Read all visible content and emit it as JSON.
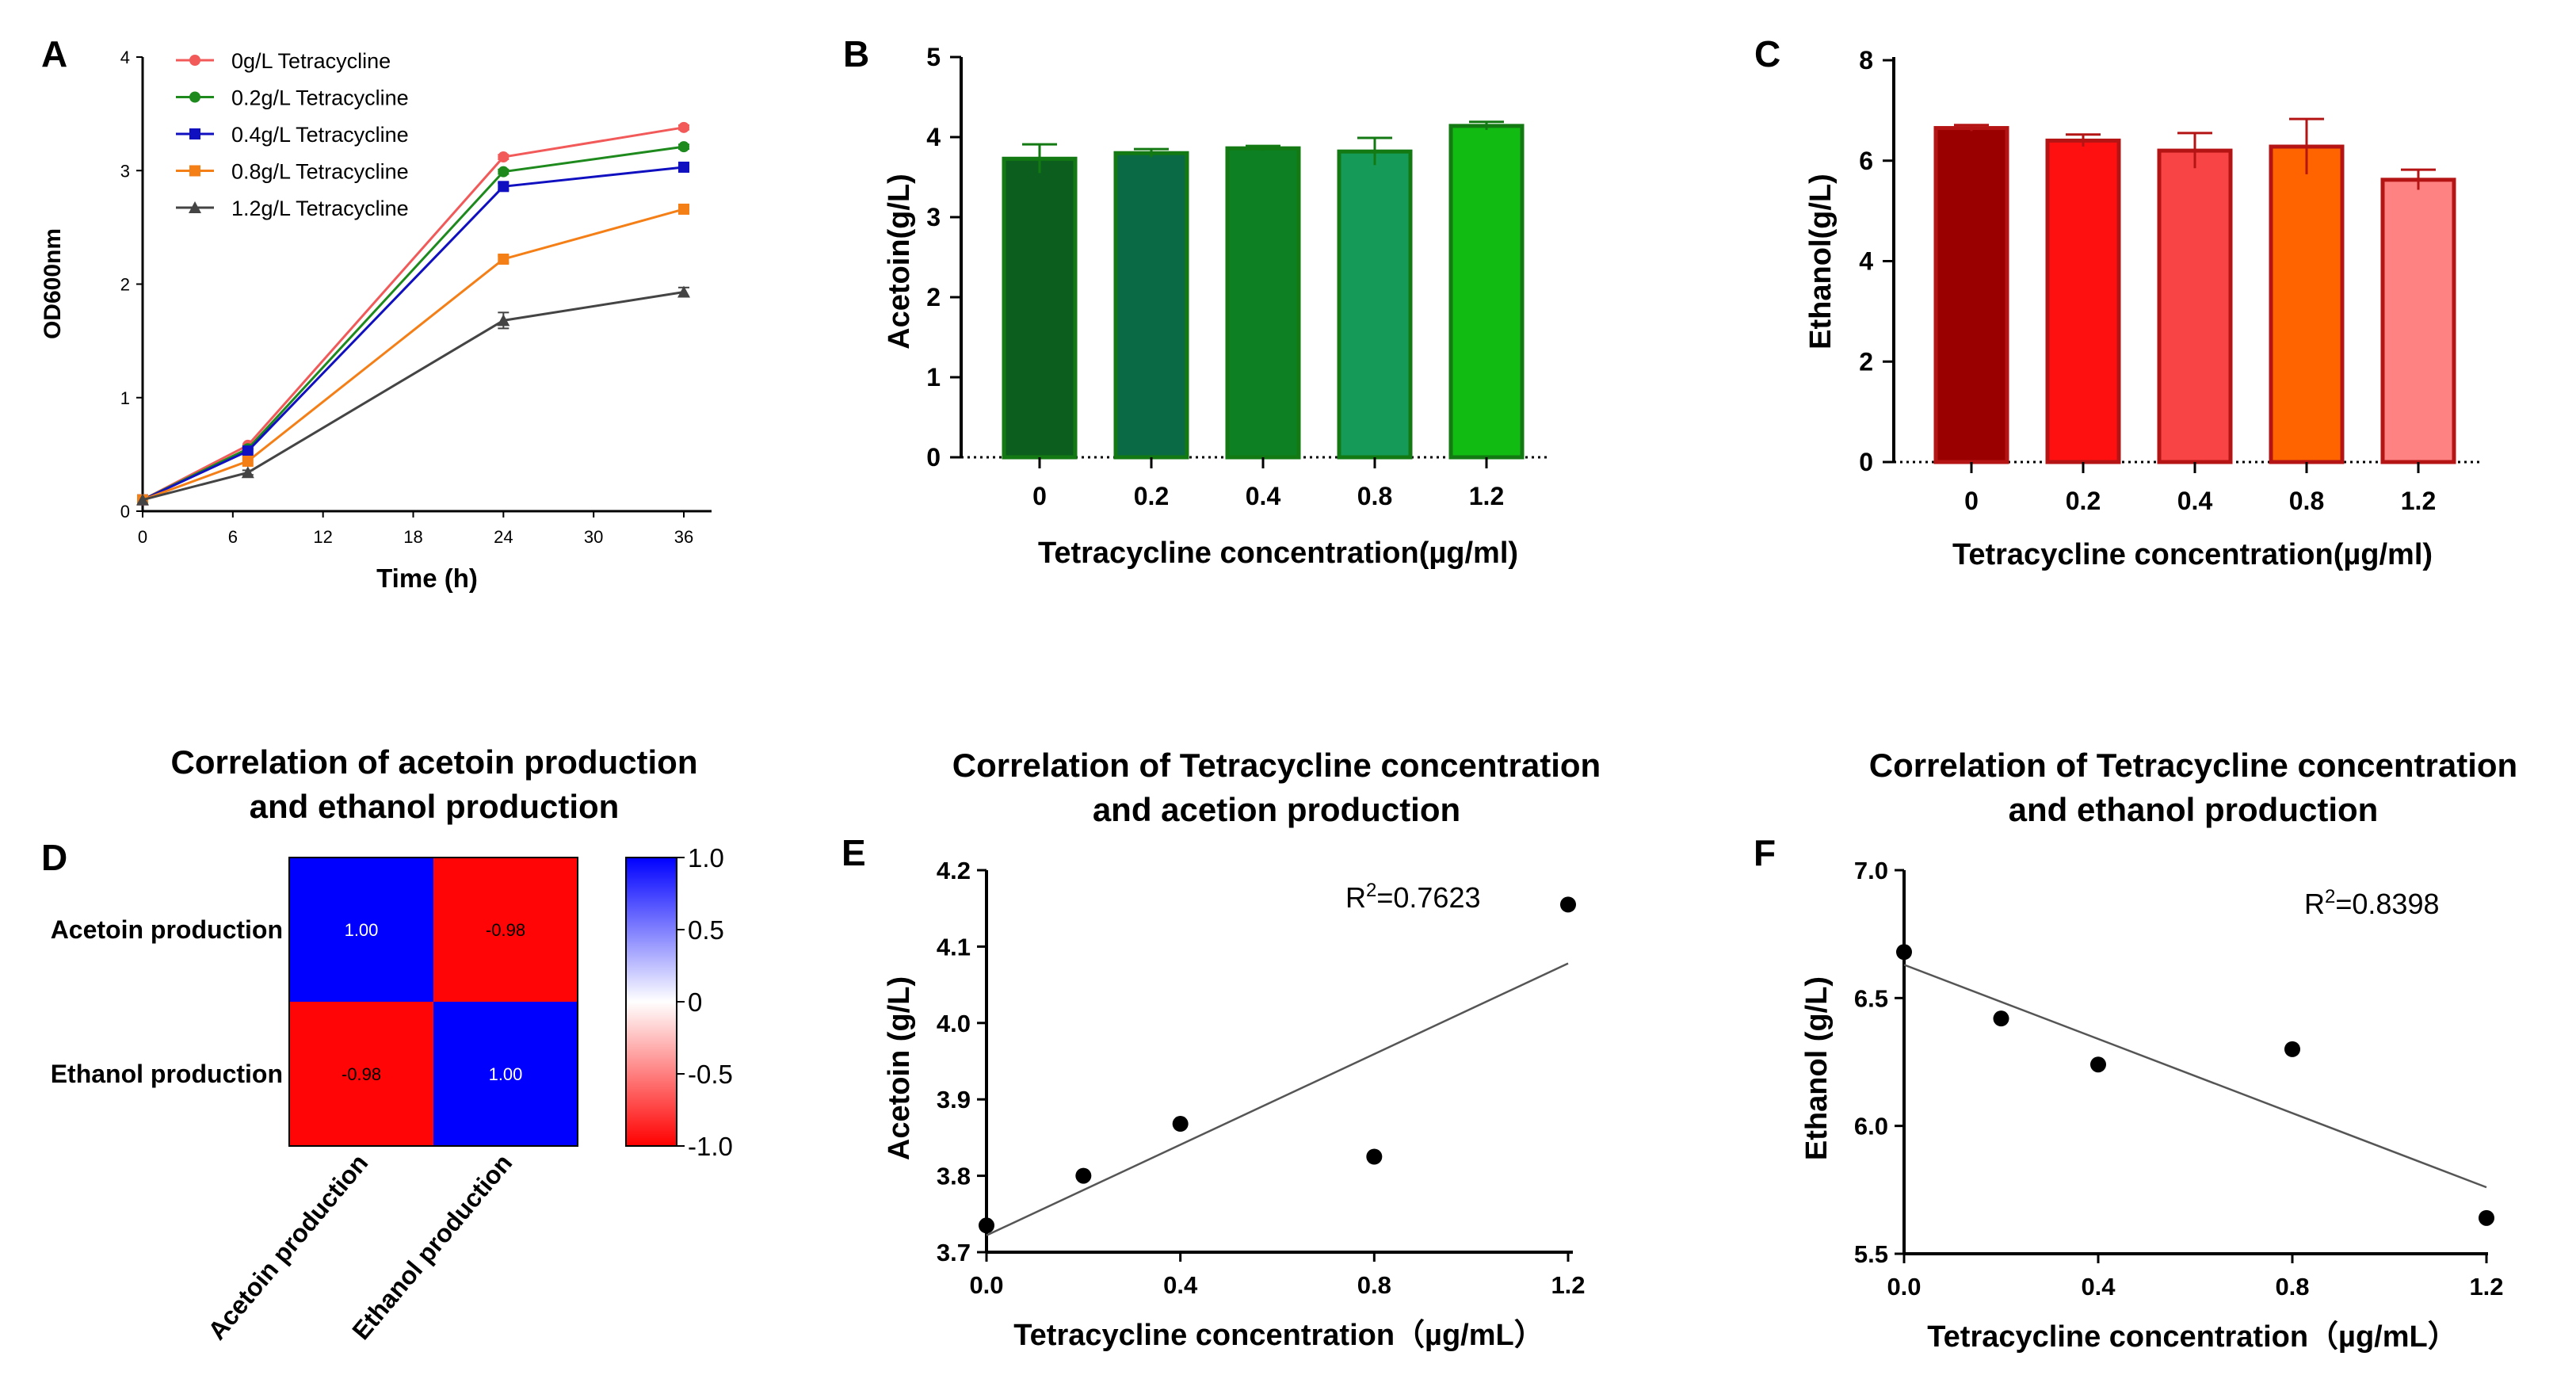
{
  "panels": {
    "A": "A",
    "B": "B",
    "C": "C",
    "D": "D",
    "E": "E",
    "F": "F"
  },
  "chart_data": [
    {
      "id": "A",
      "type": "line",
      "xlabel": "Time (h)",
      "ylabel": "OD600nm",
      "x": [
        0,
        7,
        24,
        36
      ],
      "xlim": [
        0,
        36
      ],
      "xticks": [
        "0",
        "6",
        "12",
        "18",
        "24",
        "30",
        "36"
      ],
      "ylim": [
        0,
        4
      ],
      "yticks": [
        "0",
        "1",
        "2",
        "3",
        "4"
      ],
      "legend_position": "top-left",
      "series": [
        {
          "name": "0g/L Tetracycline",
          "color": "#f25a5a",
          "marker": "circle",
          "values": [
            0.1,
            0.58,
            3.12,
            3.38
          ],
          "err": [
            0,
            0,
            0.02,
            0.02
          ]
        },
        {
          "name": "0.2g/L Tetracycline",
          "color": "#1e8a1e",
          "marker": "circle",
          "values": [
            0.1,
            0.55,
            2.99,
            3.21
          ],
          "err": [
            0,
            0,
            0.02,
            0.02
          ]
        },
        {
          "name": "0.4g/L Tetracycline",
          "color": "#1010c0",
          "marker": "square",
          "values": [
            0.1,
            0.53,
            2.86,
            3.03
          ],
          "err": [
            0,
            0,
            0.03,
            0.02
          ]
        },
        {
          "name": "0.8g/L Tetracycline",
          "color": "#f57f17",
          "marker": "square",
          "values": [
            0.1,
            0.44,
            2.22,
            2.66
          ],
          "err": [
            0,
            0,
            0.03,
            0.02
          ]
        },
        {
          "name": "1.2g/L Tetracycline",
          "color": "#444444",
          "marker": "triangle",
          "values": [
            0.1,
            0.34,
            1.68,
            1.93
          ],
          "err": [
            0,
            0.02,
            0.07,
            0.04
          ]
        }
      ]
    },
    {
      "id": "B",
      "type": "bar",
      "xlabel": "Tetracycline concentration(µg/ml)",
      "ylabel": "Acetoin(g/L)",
      "categories": [
        "0",
        "0.2",
        "0.4",
        "0.8",
        "1.2"
      ],
      "values": [
        3.73,
        3.8,
        3.86,
        3.82,
        4.14
      ],
      "err": [
        0.18,
        0.05,
        0.03,
        0.17,
        0.05
      ],
      "colors": [
        "#0b5e1e",
        "#0b6a46",
        "#0c8022",
        "#159a58",
        "#11bb11"
      ],
      "edge_color": "#137a13",
      "ylim": [
        0,
        5
      ],
      "yticks": [
        "0",
        "1",
        "2",
        "3",
        "4",
        "5"
      ]
    },
    {
      "id": "C",
      "type": "bar",
      "xlabel": "Tetracycline concentration(µg/ml)",
      "ylabel": "Ethanol(g/L)",
      "categories": [
        "0",
        "0.2",
        "0.4",
        "0.8",
        "1.2"
      ],
      "values": [
        6.65,
        6.4,
        6.2,
        6.28,
        5.62
      ],
      "err": [
        0.06,
        0.12,
        0.35,
        0.55,
        0.2
      ],
      "colors": [
        "#9b0000",
        "#ff1010",
        "#f84444",
        "#ff6400",
        "#ff8282"
      ],
      "edge_color": "#b41414",
      "ylim": [
        0,
        8
      ],
      "yticks": [
        "0",
        "2",
        "4",
        "6",
        "8"
      ]
    },
    {
      "id": "D",
      "type": "heatmap",
      "title": "Correlation of acetoin production and ethanol production",
      "title_lines": [
        "Correlation of acetoin production",
        "and ethanol production"
      ],
      "rows": [
        "Acetoin production",
        "Ethanol production"
      ],
      "cols": [
        "Acetoin production",
        "Ethanol production"
      ],
      "values": [
        [
          1.0,
          -0.98
        ],
        [
          -0.98,
          1.0
        ]
      ],
      "cell_labels": [
        [
          "1.00",
          "-0.98"
        ],
        [
          "-0.98",
          "1.00"
        ]
      ],
      "colorbar_ticks": [
        "1.0",
        "0.5",
        "0",
        "-0.5",
        "-1.0"
      ],
      "colorbar_range": [
        -1.0,
        1.0
      ],
      "colors": {
        "positive": "#0000ff",
        "negative": "#ff0000",
        "mid": "#ffffff"
      }
    },
    {
      "id": "E",
      "type": "scatter",
      "title": "Correlation of Tetracycline concentration and acetion production",
      "title_lines": [
        "Correlation of Tetracycline concentration",
        "and acetion production"
      ],
      "xlabel": "Tetracycline concentration（µg/mL）",
      "ylabel": "Acetoin (g/L)",
      "x": [
        0,
        0.2,
        0.4,
        0.8,
        1.2
      ],
      "y": [
        3.735,
        3.8,
        3.868,
        3.825,
        4.155
      ],
      "xlim": [
        0,
        1.2
      ],
      "xticks": [
        "0.0",
        "0.4",
        "0.8",
        "1.2"
      ],
      "ylim": [
        3.7,
        4.2
      ],
      "yticks": [
        "3.7",
        "3.8",
        "3.9",
        "4.0",
        "4.1",
        "4.2"
      ],
      "fit": {
        "y_at_xmin": 3.722,
        "y_at_xmax": 4.078
      },
      "r2_prefix": "R",
      "r2_exp": "2",
      "r2_value": "=0.7623"
    },
    {
      "id": "F",
      "type": "scatter",
      "title": "Correlation of Tetracycline concentration and ethanol production",
      "title_lines": [
        "Correlation of Tetracycline concentration",
        "and ethanol production"
      ],
      "xlabel": "Tetracycline concentration（µg/mL）",
      "ylabel": "Ethanol (g/L)",
      "x": [
        0,
        0.2,
        0.4,
        0.8,
        1.2
      ],
      "y": [
        6.68,
        6.42,
        6.24,
        6.3,
        5.64
      ],
      "xlim": [
        0,
        1.2
      ],
      "xticks": [
        "0.0",
        "0.4",
        "0.8",
        "1.2"
      ],
      "ylim": [
        5.5,
        7.0
      ],
      "yticks": [
        "5.5",
        "6.0",
        "6.5",
        "7.0"
      ],
      "fit": {
        "y_at_xmin": 6.63,
        "y_at_xmax": 5.76
      },
      "r2_prefix": "R",
      "r2_exp": "2",
      "r2_value": "=0.8398"
    }
  ]
}
